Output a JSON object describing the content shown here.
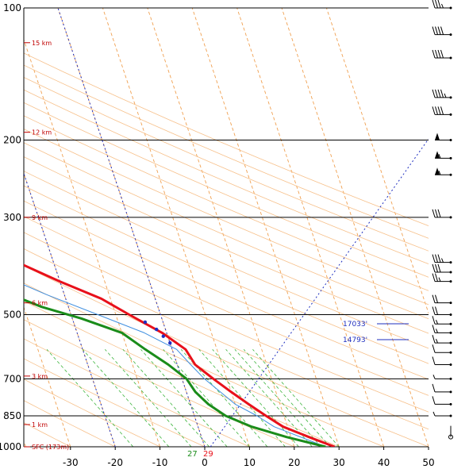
{
  "chart_data": {
    "type": "line",
    "pressure_levels": [
      "100",
      "200",
      "300",
      "500",
      "700",
      "850",
      "1000"
    ],
    "pressure_values": [
      100,
      200,
      300,
      500,
      700,
      850,
      1000
    ],
    "temp_ticks": [
      "-30",
      "-20",
      "-10",
      "0",
      "10",
      "20",
      "30",
      "40",
      "50"
    ],
    "temp_tick_values": [
      -30,
      -20,
      -10,
      0,
      10,
      20,
      30,
      40,
      50
    ],
    "height_labels": [
      {
        "label": "15 km",
        "p": 120
      },
      {
        "label": "12 km",
        "p": 192
      },
      {
        "label": "9 km",
        "p": 300
      },
      {
        "label": "6 km",
        "p": 470
      },
      {
        "label": "3 km",
        "p": 690
      },
      {
        "label": "1 km",
        "p": 890
      },
      {
        "label": "SFC (173m)",
        "p": 1000
      }
    ],
    "surface": {
      "dewpoint": "27",
      "temperature": "29"
    },
    "freezing_levels": [
      {
        "label": "17033'",
        "p": 520
      },
      {
        "label": "14793'",
        "p": 580
      }
    ],
    "series": [
      {
        "color": "#e8101a",
        "points": [
          [
            100,
            -58
          ],
          [
            110,
            -60
          ],
          [
            130,
            -58
          ],
          [
            150,
            -56
          ],
          [
            170,
            -55
          ],
          [
            190,
            -52
          ],
          [
            200,
            -50
          ],
          [
            220,
            -49
          ],
          [
            250,
            -48
          ],
          [
            280,
            -46
          ],
          [
            300,
            -44
          ],
          [
            340,
            -38
          ],
          [
            380,
            -28
          ],
          [
            420,
            -20
          ],
          [
            460,
            -12
          ],
          [
            500,
            -7
          ],
          [
            550,
            -1
          ],
          [
            600,
            3
          ],
          [
            650,
            4
          ],
          [
            700,
            7
          ],
          [
            750,
            10
          ],
          [
            800,
            13
          ],
          [
            850,
            16
          ],
          [
            900,
            19
          ],
          [
            950,
            24
          ],
          [
            1000,
            29
          ]
        ]
      },
      {
        "color": "#3f8fe0",
        "points": [
          [
            100,
            -59
          ],
          [
            120,
            -61
          ],
          [
            150,
            -58
          ],
          [
            180,
            -56
          ],
          [
            200,
            -52
          ],
          [
            250,
            -49
          ],
          [
            300,
            -45
          ],
          [
            350,
            -40
          ],
          [
            400,
            -34
          ],
          [
            450,
            -24
          ],
          [
            500,
            -14
          ],
          [
            550,
            -5
          ],
          [
            600,
            1
          ],
          [
            650,
            3
          ],
          [
            700,
            5
          ],
          [
            800,
            10
          ],
          [
            850,
            14
          ],
          [
            900,
            17
          ],
          [
            1000,
            27
          ]
        ]
      },
      {
        "color": "#1a8c1a",
        "points": [
          [
            100,
            -80
          ],
          [
            110,
            -83
          ],
          [
            130,
            -82
          ],
          [
            150,
            -83
          ],
          [
            170,
            -82
          ],
          [
            190,
            -83
          ],
          [
            200,
            -84
          ],
          [
            230,
            -92
          ],
          [
            260,
            -60
          ],
          [
            280,
            -80
          ],
          [
            300,
            -90
          ],
          [
            340,
            -70
          ],
          [
            380,
            -40
          ],
          [
            400,
            -50
          ],
          [
            420,
            -38
          ],
          [
            450,
            -32
          ],
          [
            480,
            -26
          ],
          [
            510,
            -18
          ],
          [
            550,
            -10
          ],
          [
            600,
            -6
          ],
          [
            650,
            -2
          ],
          [
            700,
            1
          ],
          [
            750,
            2
          ],
          [
            800,
            4
          ],
          [
            850,
            7
          ],
          [
            900,
            12
          ],
          [
            950,
            19
          ],
          [
            1000,
            27
          ]
        ]
      }
    ],
    "xlim": [
      -30,
      50
    ],
    "ylim": [
      100,
      1000
    ],
    "log_pressure": true,
    "wind_barbs": [
      {
        "p": 100,
        "speed": 35
      },
      {
        "p": 115,
        "speed": 40
      },
      {
        "p": 130,
        "speed": 40
      },
      {
        "p": 160,
        "speed": 45
      },
      {
        "p": 175,
        "speed": 40
      },
      {
        "p": 200,
        "speed": 50
      },
      {
        "p": 220,
        "speed": 55
      },
      {
        "p": 240,
        "speed": 55
      },
      {
        "p": 300,
        "speed": 30
      },
      {
        "p": 380,
        "speed": 35
      },
      {
        "p": 400,
        "speed": 30
      },
      {
        "p": 420,
        "speed": 25
      },
      {
        "p": 470,
        "speed": 20
      },
      {
        "p": 500,
        "speed": 20
      },
      {
        "p": 525,
        "speed": 15
      },
      {
        "p": 550,
        "speed": 15
      },
      {
        "p": 580,
        "speed": 15
      },
      {
        "p": 610,
        "speed": 10
      },
      {
        "p": 650,
        "speed": 10
      },
      {
        "p": 700,
        "speed": 5
      },
      {
        "p": 750,
        "speed": 10
      },
      {
        "p": 800,
        "speed": 10
      },
      {
        "p": 850,
        "speed": 5
      },
      {
        "p": 950,
        "speed": 0
      }
    ]
  }
}
